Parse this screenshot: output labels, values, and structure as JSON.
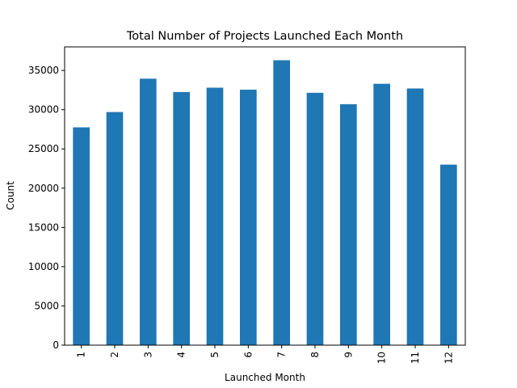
{
  "chart_data": {
    "type": "bar",
    "title": "Total Number of Projects Launched Each Month",
    "xlabel": "Launched Month",
    "ylabel": "Count",
    "categories": [
      "1",
      "2",
      "3",
      "4",
      "5",
      "6",
      "7",
      "8",
      "9",
      "10",
      "11",
      "12"
    ],
    "values": [
      27750,
      29700,
      33950,
      32250,
      32800,
      32550,
      36300,
      32150,
      30700,
      33300,
      32700,
      23000
    ],
    "ylim": [
      0,
      38000
    ],
    "yticks": [
      "0",
      "5000",
      "10000",
      "15000",
      "20000",
      "25000",
      "30000",
      "35000"
    ],
    "bar_color": "#1f77b4",
    "grid": false,
    "legend": "none"
  }
}
